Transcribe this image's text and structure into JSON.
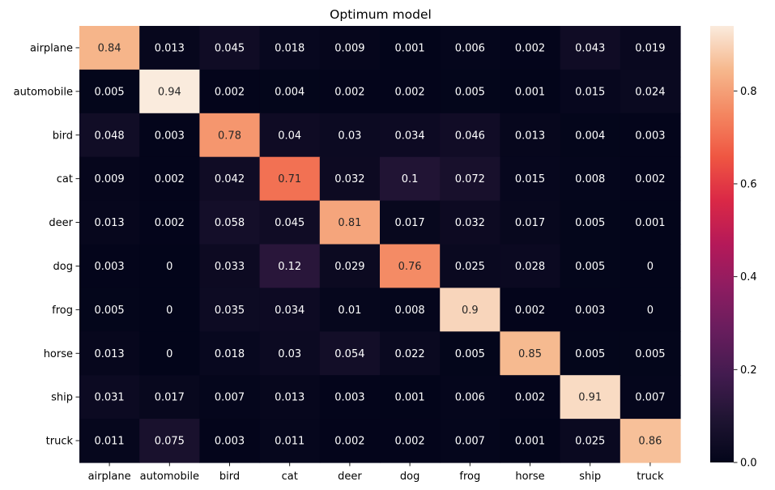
{
  "chart_data": {
    "type": "heatmap",
    "title": "Optimum model",
    "xlabel": "",
    "ylabel": "",
    "x_categories": [
      "airplane",
      "automobile",
      "bird",
      "cat",
      "deer",
      "dog",
      "frog",
      "horse",
      "ship",
      "truck"
    ],
    "y_categories": [
      "airplane",
      "automobile",
      "bird",
      "cat",
      "deer",
      "dog",
      "frog",
      "horse",
      "ship",
      "truck"
    ],
    "values": [
      [
        0.84,
        0.013,
        0.045,
        0.018,
        0.009,
        0.001,
        0.006,
        0.002,
        0.043,
        0.019
      ],
      [
        0.005,
        0.94,
        0.002,
        0.004,
        0.002,
        0.002,
        0.005,
        0.001,
        0.015,
        0.024
      ],
      [
        0.048,
        0.003,
        0.78,
        0.04,
        0.03,
        0.034,
        0.046,
        0.013,
        0.004,
        0.003
      ],
      [
        0.009,
        0.002,
        0.042,
        0.71,
        0.032,
        0.1,
        0.072,
        0.015,
        0.008,
        0.002
      ],
      [
        0.013,
        0.002,
        0.058,
        0.045,
        0.81,
        0.017,
        0.032,
        0.017,
        0.005,
        0.001
      ],
      [
        0.003,
        0,
        0.033,
        0.12,
        0.029,
        0.76,
        0.025,
        0.028,
        0.005,
        0
      ],
      [
        0.005,
        0,
        0.035,
        0.034,
        0.01,
        0.008,
        0.9,
        0.002,
        0.003,
        0
      ],
      [
        0.013,
        0,
        0.018,
        0.03,
        0.054,
        0.022,
        0.005,
        0.85,
        0.005,
        0.005
      ],
      [
        0.031,
        0.017,
        0.007,
        0.013,
        0.003,
        0.001,
        0.006,
        0.002,
        0.91,
        0.007
      ],
      [
        0.011,
        0.075,
        0.003,
        0.011,
        0.002,
        0.002,
        0.007,
        0.001,
        0.025,
        0.86
      ]
    ],
    "annotations": [
      [
        "0.84",
        "0.013",
        "0.045",
        "0.018",
        "0.009",
        "0.001",
        "0.006",
        "0.002",
        "0.043",
        "0.019"
      ],
      [
        "0.005",
        "0.94",
        "0.002",
        "0.004",
        "0.002",
        "0.002",
        "0.005",
        "0.001",
        "0.015",
        "0.024"
      ],
      [
        "0.048",
        "0.003",
        "0.78",
        "0.04",
        "0.03",
        "0.034",
        "0.046",
        "0.013",
        "0.004",
        "0.003"
      ],
      [
        "0.009",
        "0.002",
        "0.042",
        "0.71",
        "0.032",
        "0.1",
        "0.072",
        "0.015",
        "0.008",
        "0.002"
      ],
      [
        "0.013",
        "0.002",
        "0.058",
        "0.045",
        "0.81",
        "0.017",
        "0.032",
        "0.017",
        "0.005",
        "0.001"
      ],
      [
        "0.003",
        "0",
        "0.033",
        "0.12",
        "0.029",
        "0.76",
        "0.025",
        "0.028",
        "0.005",
        "0"
      ],
      [
        "0.005",
        "0",
        "0.035",
        "0.034",
        "0.01",
        "0.008",
        "0.9",
        "0.002",
        "0.003",
        "0"
      ],
      [
        "0.013",
        "0",
        "0.018",
        "0.03",
        "0.054",
        "0.022",
        "0.005",
        "0.85",
        "0.005",
        "0.005"
      ],
      [
        "0.031",
        "0.017",
        "0.007",
        "0.013",
        "0.003",
        "0.001",
        "0.006",
        "0.002",
        "0.91",
        "0.007"
      ],
      [
        "0.011",
        "0.075",
        "0.003",
        "0.011",
        "0.002",
        "0.002",
        "0.007",
        "0.001",
        "0.025",
        "0.86"
      ]
    ],
    "colormap": "rocket",
    "vmin": 0,
    "vmax": 0.94,
    "colorbar_ticks": [
      "0.0",
      "0.2",
      "0.4",
      "0.6",
      "0.8"
    ],
    "colorbar_tick_values": [
      0,
      0.2,
      0.4,
      0.6,
      0.8
    ],
    "colorbar_position": "right"
  }
}
